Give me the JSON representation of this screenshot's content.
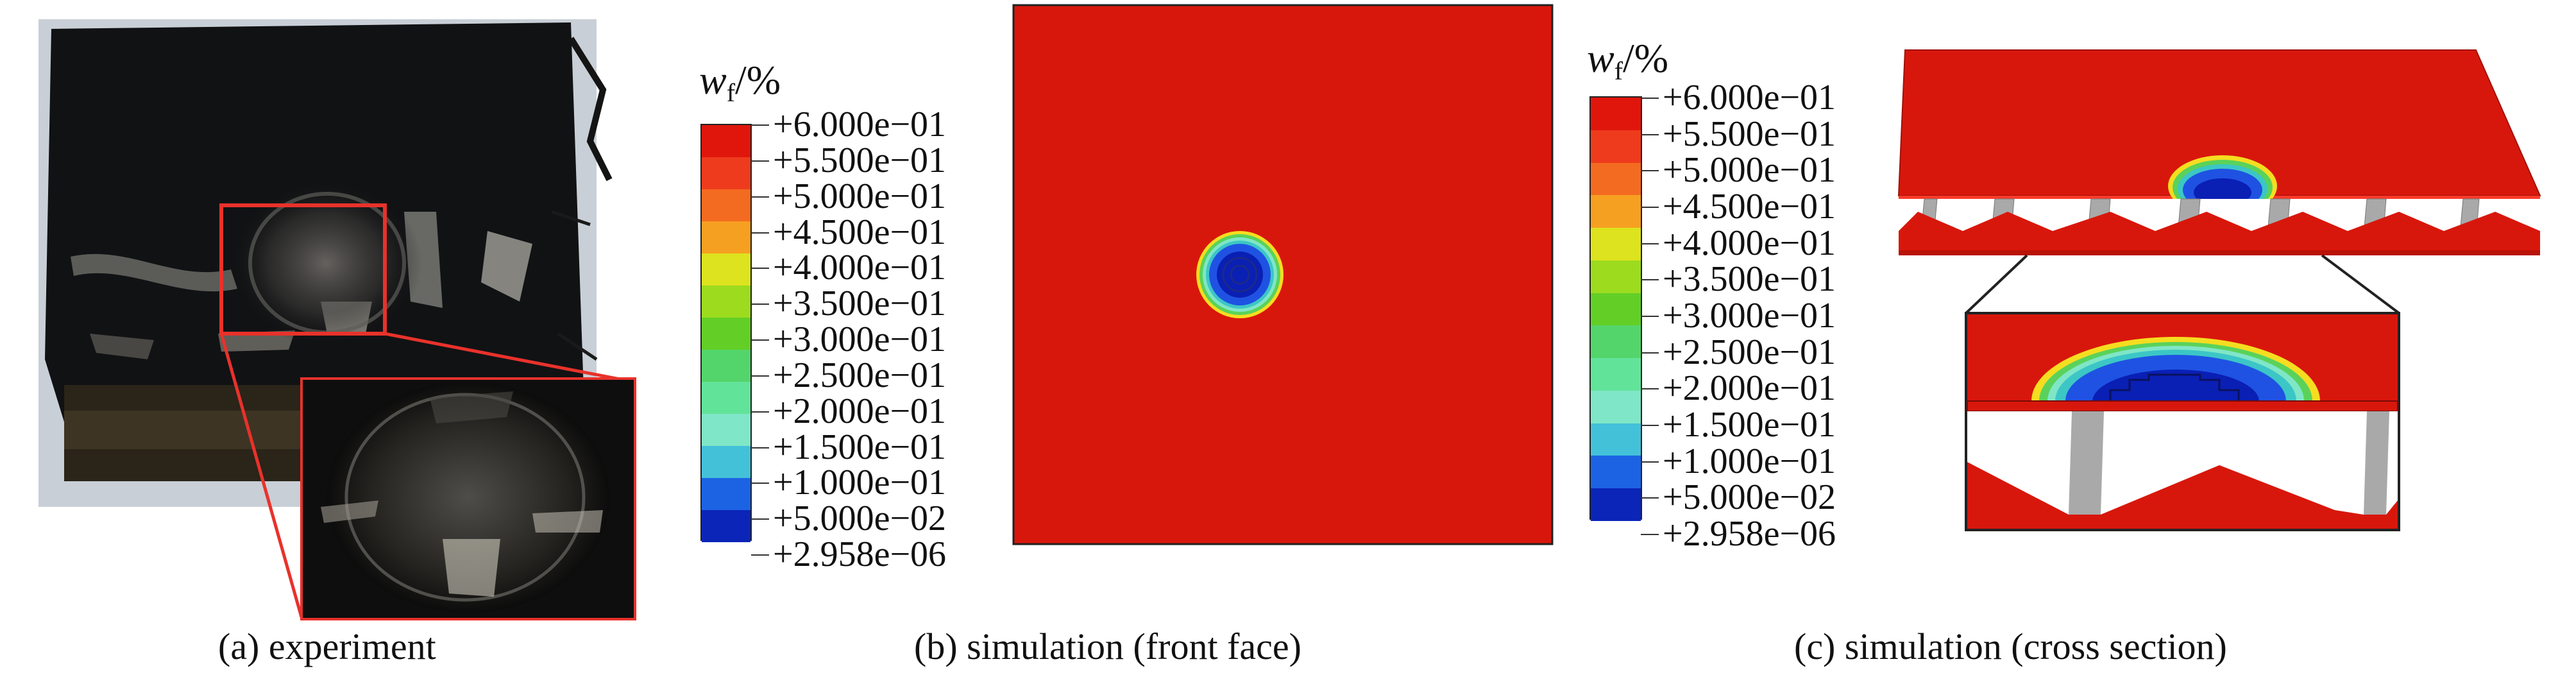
{
  "colors": {
    "red": "#d8170c",
    "blue_dark": "#0a1fb4",
    "blue": "#1f52e2",
    "cyan": "#3cc6c6",
    "green": "#5ad25a",
    "orange": "#f39a1c",
    "photo_dark": "#111214",
    "photo_bg": "#c9cfd6",
    "core_gray": "#a9a9a9",
    "inset_border": "#e8322b"
  },
  "legend": {
    "symbol": "w",
    "subscript": "f",
    "unit": "/%",
    "items": [
      {
        "label": "+6.000e−01",
        "color": "#e0160c"
      },
      {
        "label": "+5.500e−01",
        "color": "#ee3b1d"
      },
      {
        "label": "+5.000e−01",
        "color": "#f36b20"
      },
      {
        "label": "+4.500e−01",
        "color": "#f6a021"
      },
      {
        "label": "+4.000e−01",
        "color": "#dde31e"
      },
      {
        "label": "+3.500e−01",
        "color": "#9ddb1f"
      },
      {
        "label": "+3.000e−01",
        "color": "#63cf26"
      },
      {
        "label": "+2.500e−01",
        "color": "#54d56b"
      },
      {
        "label": "+2.000e−01",
        "color": "#62e39a"
      },
      {
        "label": "+1.500e−01",
        "color": "#7fe6c7"
      },
      {
        "label": "+1.000e−01",
        "color": "#43c1d9"
      },
      {
        "label": "+5.000e−02",
        "color": "#1c63e4"
      },
      {
        "label": "+2.958e−06",
        "color": "#0b25b8"
      }
    ]
  },
  "captions": {
    "a": "(a) experiment",
    "b": "(b) simulation (front face)",
    "c": "(c) simulation (cross section)"
  }
}
